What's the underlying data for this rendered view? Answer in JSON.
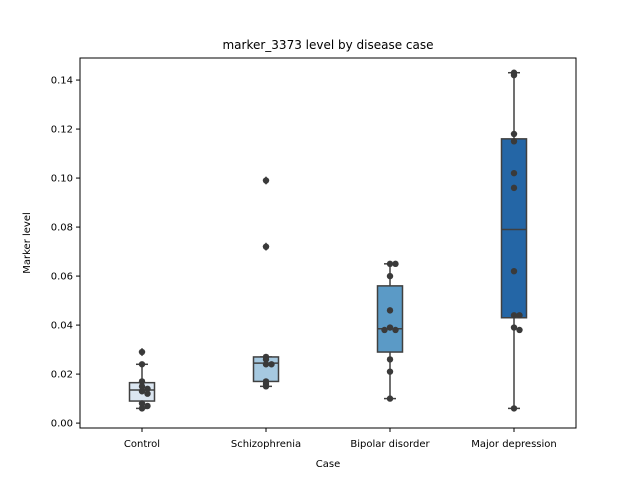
{
  "chart_data": {
    "type": "box",
    "title": "marker_3373 level by disease case",
    "xlabel": "Case",
    "ylabel": "Marker level",
    "ylim": [
      -0.002,
      0.149
    ],
    "yticks": [
      0.0,
      0.02,
      0.04,
      0.06,
      0.08,
      0.1,
      0.12,
      0.14
    ],
    "ytick_labels": [
      "0.00",
      "0.02",
      "0.04",
      "0.06",
      "0.08",
      "0.10",
      "0.12",
      "0.14"
    ],
    "grid": false,
    "categories": [
      "Control",
      "Schizophrenia",
      "Bipolar disorder",
      "Major depression"
    ],
    "boxes": [
      {
        "category": "Control",
        "color": "#dbe6f1",
        "q1": 0.009,
        "median": 0.0135,
        "q3": 0.0165,
        "whisker_low": 0.006,
        "whisker_high": 0.024,
        "outliers": [
          0.029
        ],
        "points": [
          0.029,
          0.024,
          0.017,
          0.015,
          0.014,
          0.013,
          0.012,
          0.008,
          0.007,
          0.006
        ]
      },
      {
        "category": "Schizophrenia",
        "color": "#a6c9e0",
        "q1": 0.017,
        "median": 0.0245,
        "q3": 0.027,
        "whisker_low": 0.015,
        "whisker_high": 0.027,
        "outliers": [
          0.099,
          0.072
        ],
        "points": [
          0.099,
          0.072,
          0.027,
          0.026,
          0.024,
          0.024,
          0.017,
          0.016,
          0.015
        ]
      },
      {
        "category": "Bipolar disorder",
        "color": "#5b9ac6",
        "q1": 0.029,
        "median": 0.0385,
        "q3": 0.056,
        "whisker_low": 0.01,
        "whisker_high": 0.065,
        "outliers": [],
        "points": [
          0.065,
          0.065,
          0.06,
          0.046,
          0.039,
          0.038,
          0.038,
          0.026,
          0.021,
          0.01
        ]
      },
      {
        "category": "Major depression",
        "color": "#2466a6",
        "q1": 0.043,
        "median": 0.079,
        "q3": 0.116,
        "whisker_low": 0.006,
        "whisker_high": 0.143,
        "outliers": [],
        "points": [
          0.143,
          0.142,
          0.118,
          0.115,
          0.102,
          0.096,
          0.062,
          0.044,
          0.044,
          0.039,
          0.038,
          0.006
        ]
      }
    ]
  }
}
